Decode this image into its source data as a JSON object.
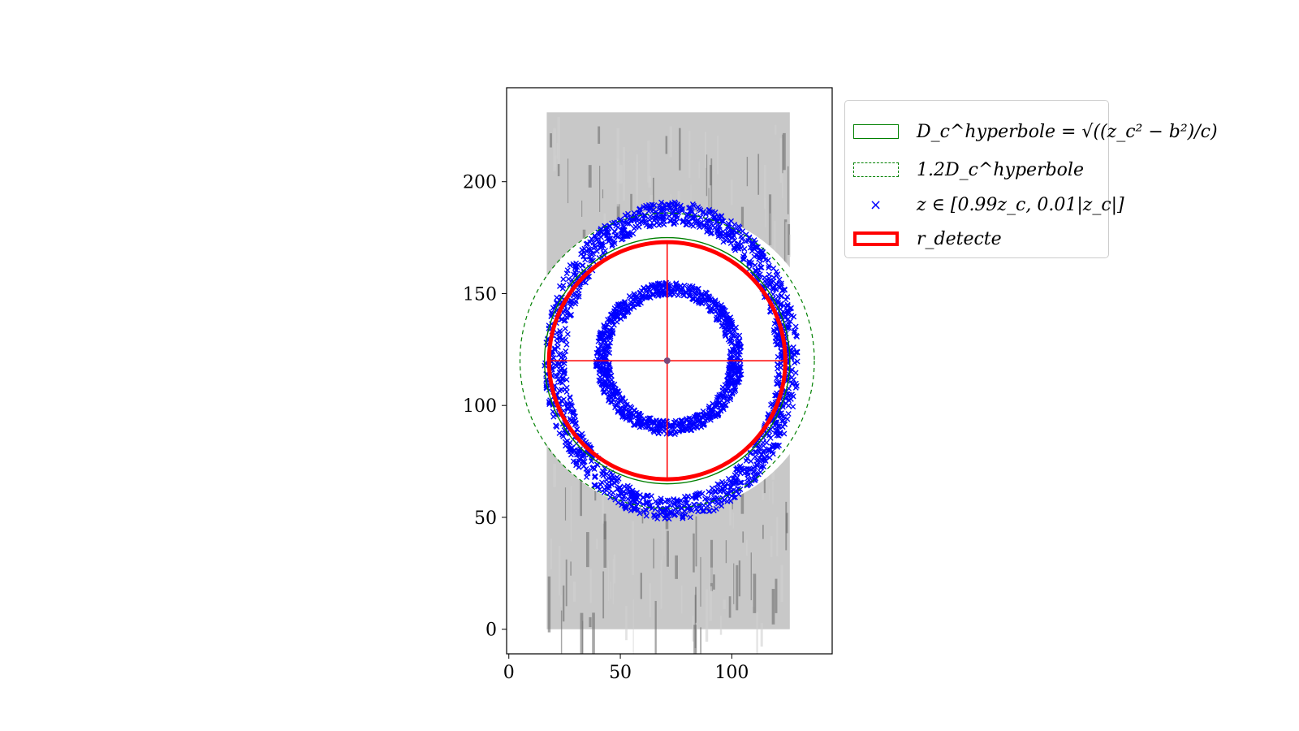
{
  "chart_data": {
    "type": "scatter",
    "title": "",
    "xlabel": "",
    "ylabel": "",
    "xlim": [
      -1,
      145
    ],
    "ylim": [
      -11,
      242
    ],
    "xticks": [
      0,
      50,
      100
    ],
    "yticks": [
      0,
      50,
      100,
      150,
      200
    ],
    "grid": false,
    "legend_position": "outside-right",
    "center": [
      71,
      120
    ],
    "detected_radius": 53,
    "hyperbola_radius": 55,
    "scaled_hyperbola_radius": 66,
    "inner_ring": {
      "center": [
        72,
        121
      ],
      "rx": 30,
      "ry": 31
    },
    "outer_ring": {
      "center": [
        73,
        120
      ],
      "rx": 52,
      "ry": 66
    },
    "background_region": {
      "x": [
        17,
        126
      ],
      "y": [
        0,
        231
      ]
    },
    "series": [
      {
        "name": "D_c^{hyperbole} = sqrt((z_c^2 - b^2)/c)",
        "style": "solid-circle",
        "color": "#008000"
      },
      {
        "name": "1.2 D_c^{hyperbole}",
        "style": "dashed-circle",
        "color": "#008000"
      },
      {
        "name": "z ∈ [0.99z_c, 0.01|z_c|]",
        "style": "x-markers",
        "color": "#0000ff"
      },
      {
        "name": "r_detecte",
        "style": "thick-circle",
        "color": "#ff0000"
      }
    ]
  },
  "legend": {
    "items": [
      {
        "label": "D_c^hyperbole = √((z_c² − b²)/c)"
      },
      {
        "label": "1.2D_c^hyperbole"
      },
      {
        "label": "z ∈ [0.99z_c, 0.01|z_c|]"
      },
      {
        "label": "r_detecte"
      }
    ]
  },
  "colors": {
    "hyperbola": "#008000",
    "points": "#0000ff",
    "detected": "#ff0000",
    "background_points": "#808080"
  }
}
